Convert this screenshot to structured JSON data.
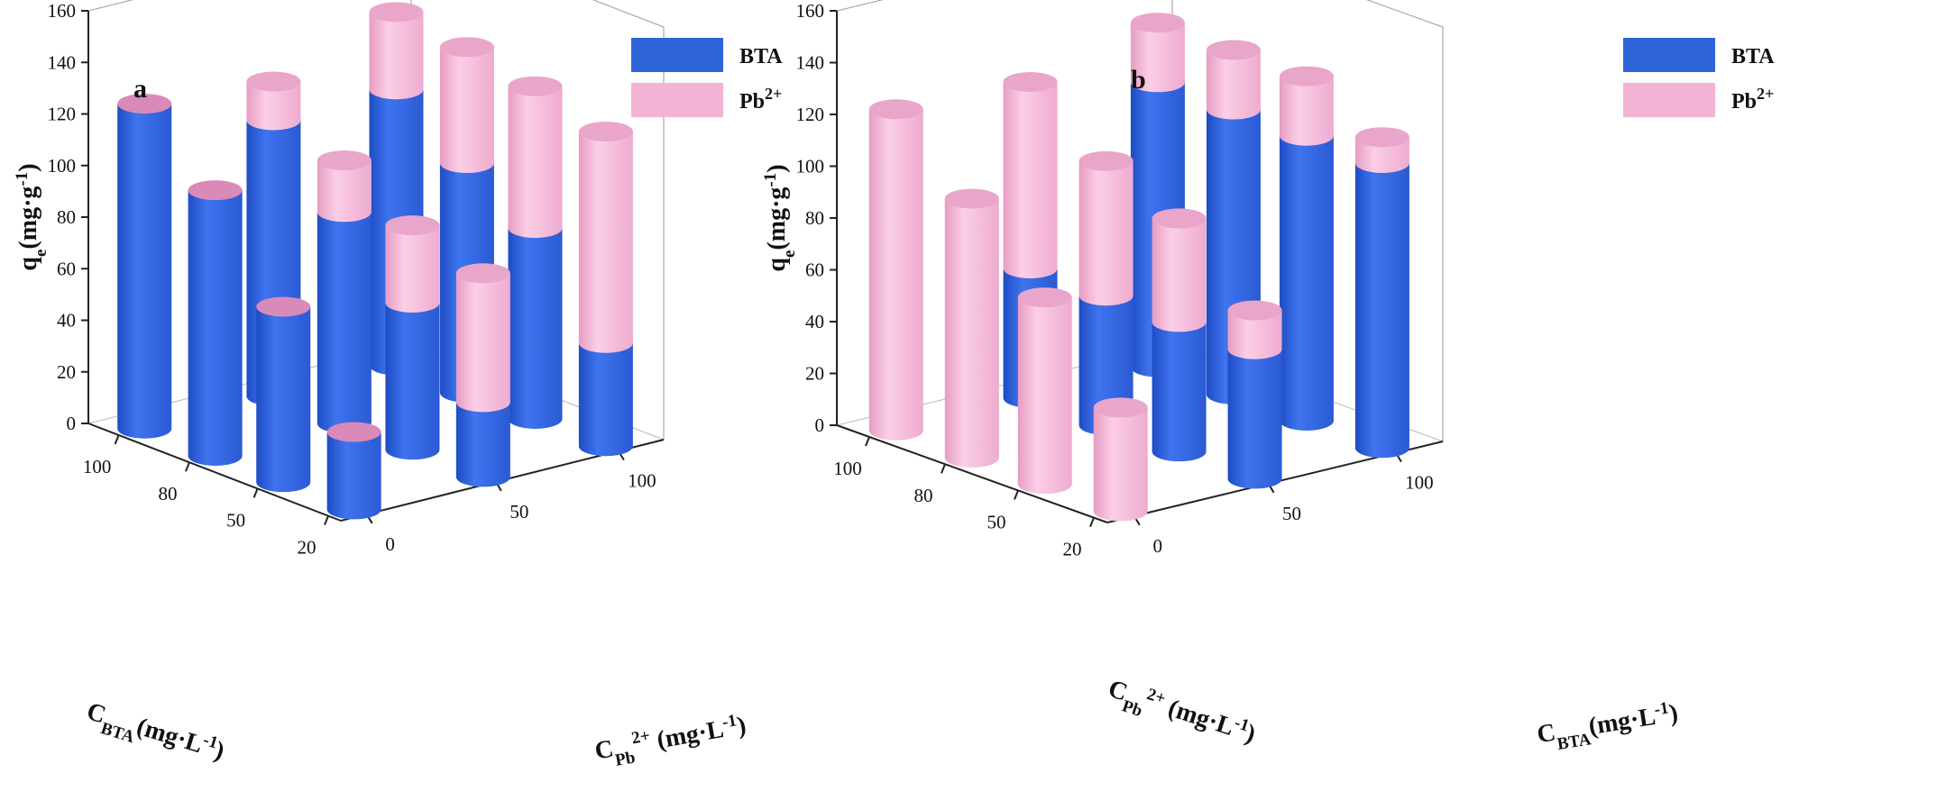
{
  "chart_data": [
    {
      "type": "bar",
      "panel_label": "a",
      "zlabel": "q",
      "zlabel_sub": "e",
      "zlabel_unit": "(mg·g",
      "zlabel_sup": "-1",
      "zlabel_end": ")",
      "zticks": [
        "0",
        "20",
        "40",
        "60",
        "80",
        "100",
        "120",
        "140",
        "160"
      ],
      "zlim": [
        0,
        160
      ],
      "left_axis": {
        "label": "C",
        "sub": "BTA",
        "unit": "(mg·L",
        "sup": "-1",
        "end": ")",
        "ticks": [
          "20",
          "50",
          "80",
          "100"
        ]
      },
      "right_axis": {
        "label": "C",
        "sub": "Pb",
        "subsup": "2+",
        "unit": " (mg·L",
        "sup": "-1",
        "end": ")",
        "ticks": [
          "0",
          "50",
          "100"
        ]
      },
      "legend": [
        {
          "name": "BTA",
          "sup": "",
          "color": "#2f63d8"
        },
        {
          "name": "Pb",
          "sup": "2+",
          "color": "#f3b3d4"
        }
      ],
      "bars": [
        {
          "left": "100",
          "right": "0",
          "bta": 126,
          "pb": 0
        },
        {
          "left": "80",
          "right": "0",
          "bta": 103,
          "pb": 0
        },
        {
          "left": "50",
          "right": "0",
          "bta": 68,
          "pb": 0
        },
        {
          "left": "20",
          "right": "0",
          "bta": 30,
          "pb": 0
        },
        {
          "left": "100",
          "right": "50",
          "bta": 107,
          "pb": 15
        },
        {
          "left": "80",
          "right": "50",
          "bta": 82,
          "pb": 20
        },
        {
          "left": "50",
          "right": "50",
          "bta": 57,
          "pb": 30
        },
        {
          "left": "20",
          "right": "50",
          "bta": 29,
          "pb": 50
        },
        {
          "left": "100",
          "right": "100",
          "bta": 107,
          "pb": 30
        },
        {
          "left": "80",
          "right": "100",
          "bta": 89,
          "pb": 45
        },
        {
          "left": "50",
          "right": "100",
          "bta": 74,
          "pb": 55
        },
        {
          "left": "20",
          "right": "100",
          "bta": 40,
          "pb": 82
        }
      ]
    },
    {
      "type": "bar",
      "panel_label": "b",
      "zlabel": "q",
      "zlabel_sub": "e",
      "zlabel_unit": "(mg·g",
      "zlabel_sup": "-1",
      "zlabel_end": ")",
      "zticks": [
        "0",
        "20",
        "40",
        "60",
        "80",
        "100",
        "120",
        "140",
        "160"
      ],
      "zlim": [
        0,
        160
      ],
      "left_axis": {
        "label": "C",
        "sub": "Pb",
        "subsup": "2+",
        "unit": " (mg·L",
        "sup": "-1",
        "end": ")",
        "ticks": [
          "20",
          "50",
          "80",
          "100"
        ]
      },
      "right_axis": {
        "label": "C",
        "sub": "BTA",
        "unit": "(mg·L",
        "sup": "-1",
        "end": ")",
        "ticks": [
          "0",
          "50",
          "100"
        ]
      },
      "legend": [
        {
          "name": "BTA",
          "sup": "",
          "color": "#2f63d8"
        },
        {
          "name": "Pb",
          "sup": "2+",
          "color": "#f3b3d4"
        }
      ],
      "bars": [
        {
          "left": "100",
          "right": "0",
          "bta": 0,
          "pb": 124
        },
        {
          "left": "80",
          "right": "0",
          "bta": 0,
          "pb": 100
        },
        {
          "left": "50",
          "right": "0",
          "bta": 0,
          "pb": 72
        },
        {
          "left": "20",
          "right": "0",
          "bta": 0,
          "pb": 40
        },
        {
          "left": "100",
          "right": "50",
          "bta": 50,
          "pb": 72
        },
        {
          "left": "80",
          "right": "50",
          "bta": 50,
          "pb": 52
        },
        {
          "left": "50",
          "right": "50",
          "bta": 50,
          "pb": 40
        },
        {
          "left": "20",
          "right": "50",
          "bta": 50,
          "pb": 15
        },
        {
          "left": "100",
          "right": "100",
          "bta": 110,
          "pb": 23
        },
        {
          "left": "80",
          "right": "100",
          "bta": 110,
          "pb": 23
        },
        {
          "left": "50",
          "right": "100",
          "bta": 110,
          "pb": 23
        },
        {
          "left": "20",
          "right": "100",
          "bta": 110,
          "pb": 10
        }
      ]
    }
  ]
}
